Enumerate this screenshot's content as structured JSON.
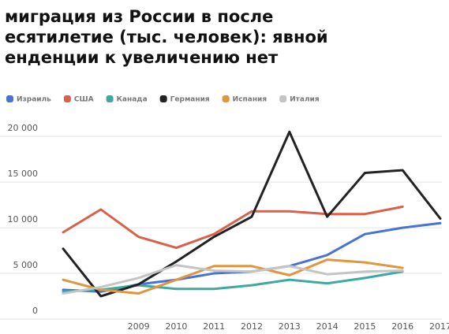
{
  "chart_data": {
    "type": "line",
    "title_lines": [
      "миграция из России в после",
      "есятилетие (тыс. человек): явной",
      "енденции к увеличению нет"
    ],
    "categories": [
      null,
      null,
      "2009",
      "2010",
      "2011",
      "2012",
      "2013",
      "2014",
      "2015",
      "2016",
      "2017"
    ],
    "ylim": [
      0,
      22000
    ],
    "yticks": [
      0,
      {
        "value": 5000,
        "label": "5 000"
      },
      {
        "value": 10000,
        "label": "10 000"
      },
      {
        "value": 15000,
        "label": "15 000"
      },
      {
        "value": 20000,
        "label": "20 000"
      }
    ],
    "grid": true,
    "series": [
      {
        "name": "Израиль",
        "color": "#4a72d4",
        "values": [
          3200,
          3000,
          3800,
          4300,
          5000,
          5200,
          5800,
          7000,
          9300,
          10000,
          10500
        ]
      },
      {
        "name": "США",
        "color": "#d9604a",
        "values": [
          9500,
          12000,
          9000,
          7800,
          9300,
          11800,
          11800,
          11500,
          11500,
          12300,
          null
        ]
      },
      {
        "name": "Канада",
        "color": "#3fa9a0",
        "values": [
          3000,
          3200,
          3700,
          3300,
          3300,
          3700,
          4300,
          3900,
          4500,
          5200,
          null
        ]
      },
      {
        "name": "Германия",
        "color": "#222222",
        "values": [
          7700,
          2500,
          3800,
          6300,
          9000,
          11200,
          20500,
          11200,
          16000,
          16300,
          11000
        ]
      },
      {
        "name": "Испания",
        "color": "#e0963e",
        "values": [
          4300,
          3200,
          2800,
          4300,
          5800,
          5800,
          4800,
          6500,
          6200,
          5600,
          null
        ]
      },
      {
        "name": "Италия",
        "color": "#c4c4c4",
        "values": [
          2800,
          3500,
          4500,
          5900,
          5300,
          5200,
          5800,
          4900,
          5200,
          5300,
          null
        ]
      }
    ]
  }
}
